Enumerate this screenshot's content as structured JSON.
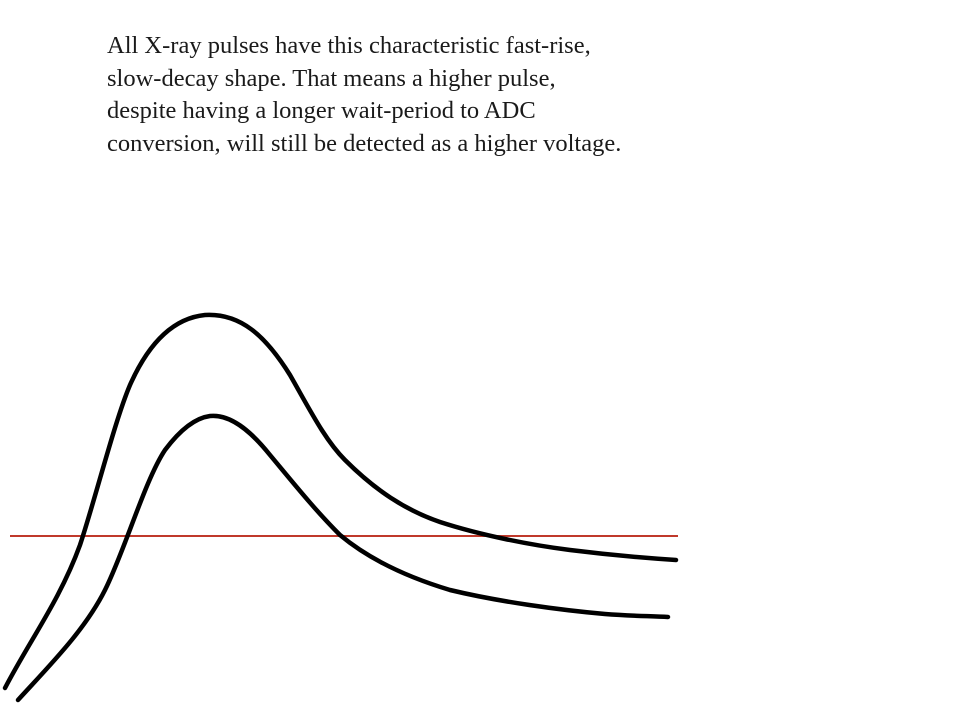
{
  "caption": {
    "lines": [
      "All X-ray pulses have this characteristic fast-rise,",
      "slow-decay shape.  That means a higher pulse,",
      "despite having a longer wait-period to ADC",
      "conversion, will still be detected as a higher voltage."
    ]
  },
  "colors": {
    "pulse_stroke": "#000000",
    "threshold_line": "#c0392b",
    "background": "#ffffff"
  }
}
